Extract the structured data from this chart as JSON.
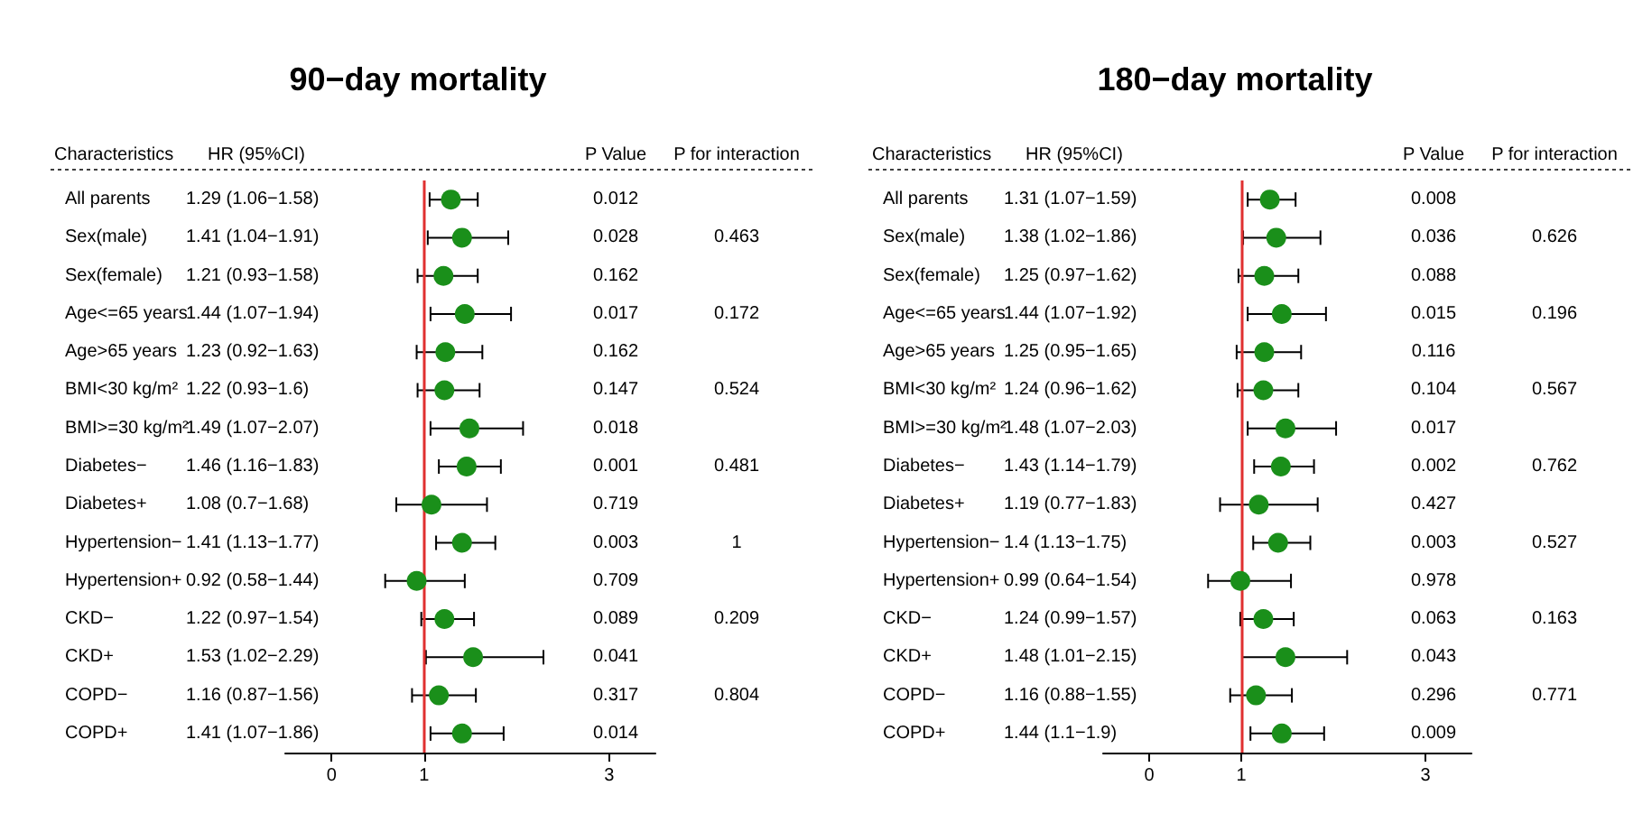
{
  "chart_data": [
    {
      "type": "scatter",
      "orientation": "horizontal",
      "title": "90−day mortality",
      "ylabel": "Characteristics",
      "marker": "circle",
      "grid": false,
      "categories": [
        "All parents",
        "Sex(male)",
        "Sex(female)",
        "Age<=65 years",
        "Age>65 years",
        "BMI<30 kg/m²",
        "BMI>=30 kg/m²",
        "Diabetes−",
        "Diabetes+",
        "Hypertension−",
        "Hypertension+",
        "CKD−",
        "CKD+",
        "COPD−",
        "COPD+"
      ],
      "series": [
        {
          "color": "#1a8f1a",
          "values": [
            1.29,
            1.41,
            1.21,
            1.44,
            1.23,
            1.22,
            1.49,
            1.46,
            1.08,
            1.41,
            0.92,
            1.22,
            1.53,
            1.16,
            1.41
          ],
          "errors": [
            [
              1.06,
              1.58
            ],
            [
              1.04,
              1.91
            ],
            [
              0.93,
              1.58
            ],
            [
              1.07,
              1.94
            ],
            [
              0.92,
              1.63
            ],
            [
              0.93,
              1.6
            ],
            [
              1.07,
              2.07
            ],
            [
              1.16,
              1.83
            ],
            [
              0.7,
              1.68
            ],
            [
              1.13,
              1.77
            ],
            [
              0.58,
              1.44
            ],
            [
              0.97,
              1.54
            ],
            [
              1.02,
              2.29
            ],
            [
              0.87,
              1.56
            ],
            [
              1.07,
              1.86
            ]
          ]
        }
      ],
      "xlim": [
        -0.5,
        3.5
      ],
      "xticks": [
        0,
        1,
        3
      ],
      "ref_lines": [
        {
          "axis": "x",
          "value": 1,
          "color": "#e03030"
        }
      ],
      "annotations": [
        "HR (95%CI)",
        "P Value",
        "P for interaction",
        "1.29 (1.06−1.58)",
        "1.41 (1.04−1.91)",
        "1.21 (0.93−1.58)",
        "1.44 (1.07−1.94)",
        "1.23 (0.92−1.63)",
        "1.22 (0.93−1.6)",
        "1.49 (1.07−2.07)",
        "1.46 (1.16−1.83)",
        "1.08 (0.7−1.68)",
        "1.41 (1.13−1.77)",
        "0.92 (0.58−1.44)",
        "1.22 (0.97−1.54)",
        "1.53 (1.02−2.29)",
        "1.16 (0.87−1.56)",
        "1.41 (1.07−1.86)",
        "0.012",
        "0.028",
        "0.162",
        "0.017",
        "0.162",
        "0.147",
        "0.018",
        "0.001",
        "0.719",
        "0.003",
        "0.709",
        "0.089",
        "0.041",
        "0.317",
        "0.014",
        "0.463",
        "0.172",
        "0.524",
        "0.481",
        "1",
        "0.209",
        "0.804"
      ]
    },
    {
      "type": "scatter",
      "orientation": "horizontal",
      "title": "180−day mortality",
      "ylabel": "Characteristics",
      "marker": "circle",
      "grid": false,
      "categories": [
        "All parents",
        "Sex(male)",
        "Sex(female)",
        "Age<=65 years",
        "Age>65 years",
        "BMI<30 kg/m²",
        "BMI>=30 kg/m²",
        "Diabetes−",
        "Diabetes+",
        "Hypertension−",
        "Hypertension+",
        "CKD−",
        "CKD+",
        "COPD−",
        "COPD+"
      ],
      "series": [
        {
          "color": "#1a8f1a",
          "values": [
            1.31,
            1.38,
            1.25,
            1.44,
            1.25,
            1.24,
            1.48,
            1.43,
            1.19,
            1.4,
            0.99,
            1.24,
            1.48,
            1.16,
            1.44
          ],
          "errors": [
            [
              1.07,
              1.59
            ],
            [
              1.02,
              1.86
            ],
            [
              0.97,
              1.62
            ],
            [
              1.07,
              1.92
            ],
            [
              0.95,
              1.65
            ],
            [
              0.96,
              1.62
            ],
            [
              1.07,
              2.03
            ],
            [
              1.14,
              1.79
            ],
            [
              0.77,
              1.83
            ],
            [
              1.13,
              1.75
            ],
            [
              0.64,
              1.54
            ],
            [
              0.99,
              1.57
            ],
            [
              1.01,
              2.15
            ],
            [
              0.88,
              1.55
            ],
            [
              1.1,
              1.9
            ]
          ]
        }
      ],
      "xlim": [
        -0.5,
        3.5
      ],
      "xticks": [
        0,
        1,
        3
      ],
      "ref_lines": [
        {
          "axis": "x",
          "value": 1,
          "color": "#e03030"
        }
      ],
      "annotations": [
        "HR (95%CI)",
        "P Value",
        "P for interaction",
        "1.31 (1.07−1.59)",
        "1.38 (1.02−1.86)",
        "1.25 (0.97−1.62)",
        "1.44 (1.07−1.92)",
        "1.25 (0.95−1.65)",
        "1.24 (0.96−1.62)",
        "1.48 (1.07−2.03)",
        "1.43 (1.14−1.79)",
        "1.19 (0.77−1.83)",
        "1.4 (1.13−1.75)",
        "0.99 (0.64−1.54)",
        "1.24 (0.99−1.57)",
        "1.48 (1.01−2.15)",
        "1.16 (0.88−1.55)",
        "1.44 (1.1−1.9)",
        "0.008",
        "0.036",
        "0.088",
        "0.015",
        "0.116",
        "0.104",
        "0.017",
        "0.002",
        "0.427",
        "0.003",
        "0.978",
        "0.063",
        "0.043",
        "0.296",
        "0.009",
        "0.626",
        "0.196",
        "0.567",
        "0.762",
        "0.527",
        "0.163",
        "0.771"
      ]
    }
  ]
}
